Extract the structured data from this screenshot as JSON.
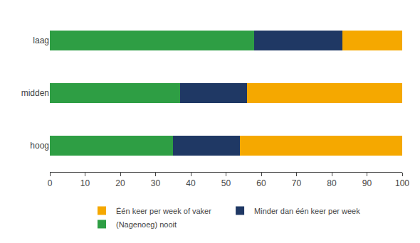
{
  "chart_data": {
    "type": "bar",
    "orientation": "horizontal",
    "stacked": true,
    "categories": [
      "laag",
      "midden",
      "hoog"
    ],
    "series": [
      {
        "name": "(Nagenoeg) nooit",
        "color": "#2e9e44",
        "values": [
          58,
          37,
          35
        ]
      },
      {
        "name": "Minder dan één keer per week",
        "color": "#1f3864",
        "values": [
          25,
          19,
          19
        ]
      },
      {
        "name": "Één keer per week of vaker",
        "color": "#f5a800",
        "values": [
          17,
          44,
          46
        ]
      }
    ],
    "xlim": [
      0,
      100
    ],
    "xticks": [
      0,
      10,
      20,
      30,
      40,
      50,
      60,
      70,
      80,
      90,
      100
    ],
    "grid": false,
    "legend": "bottom"
  }
}
